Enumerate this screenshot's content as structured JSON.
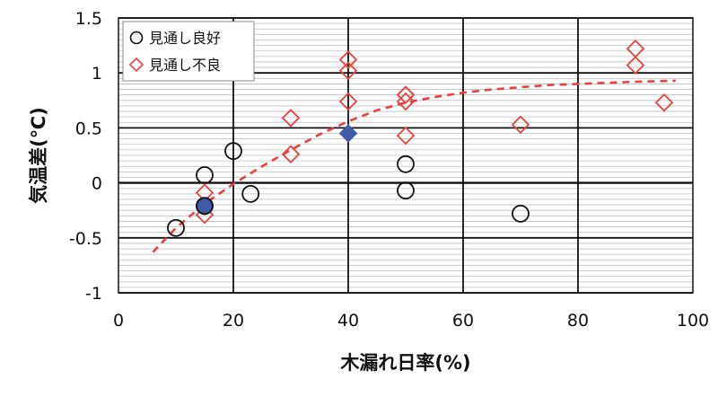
{
  "chart_data": {
    "type": "scatter",
    "title": "",
    "xlabel": "木漏れ日率(%)",
    "ylabel": "気温差(℃)",
    "xlim": [
      0,
      100
    ],
    "ylim": [
      -1,
      1.5
    ],
    "x_ticks": [
      "0",
      "20",
      "40",
      "60",
      "80",
      "100"
    ],
    "y_ticks": [
      "1.5",
      "1",
      "0.5",
      "0",
      "-0.5",
      "-1"
    ],
    "grid": "major and minor horizontal, major vertical",
    "legend_position": "top-left",
    "series": [
      {
        "name": "見通し良好",
        "marker": "circle",
        "color": "#111111",
        "points": [
          [
            10,
            -0.41
          ],
          [
            15,
            0.07
          ],
          [
            15,
            -0.21
          ],
          [
            20,
            0.29
          ],
          [
            23,
            -0.1
          ],
          [
            50,
            0.17
          ],
          [
            50,
            -0.07
          ],
          [
            70,
            -0.28
          ]
        ]
      },
      {
        "name": "見通し不良",
        "marker": "diamond",
        "color": "#e8413c",
        "points": [
          [
            15,
            -0.09
          ],
          [
            15,
            -0.29
          ],
          [
            30,
            0.59
          ],
          [
            30,
            0.26
          ],
          [
            40,
            1.12
          ],
          [
            40,
            1.02
          ],
          [
            40,
            0.74
          ],
          [
            50,
            0.8
          ],
          [
            50,
            0.74
          ],
          [
            50,
            0.43
          ],
          [
            70,
            0.53
          ],
          [
            90,
            1.22
          ],
          [
            90,
            1.07
          ],
          [
            95,
            0.73
          ]
        ]
      }
    ],
    "highlight_points": [
      {
        "x": 15,
        "y": -0.21,
        "marker": "circle",
        "color": "#3f5aa8"
      },
      {
        "x": 40,
        "y": 0.45,
        "marker": "diamond",
        "color": "#3f5aa8"
      }
    ],
    "trendline": {
      "style": "dashed",
      "color": "#e8413c",
      "points": [
        [
          6,
          -0.63
        ],
        [
          10,
          -0.41
        ],
        [
          15,
          -0.19
        ],
        [
          20,
          -0.01
        ],
        [
          25,
          0.15
        ],
        [
          30,
          0.3
        ],
        [
          35,
          0.44
        ],
        [
          40,
          0.56
        ],
        [
          45,
          0.66
        ],
        [
          50,
          0.73
        ],
        [
          55,
          0.78
        ],
        [
          60,
          0.82
        ],
        [
          65,
          0.85
        ],
        [
          70,
          0.87
        ],
        [
          75,
          0.89
        ],
        [
          80,
          0.9
        ],
        [
          85,
          0.91
        ],
        [
          90,
          0.92
        ],
        [
          97,
          0.93
        ]
      ]
    }
  }
}
